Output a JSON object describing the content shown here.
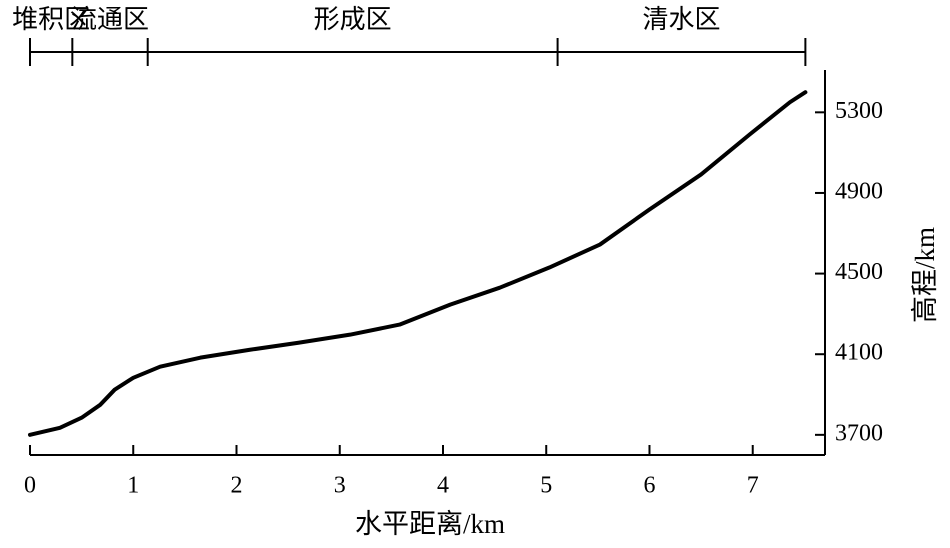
{
  "chart_data": {
    "type": "line",
    "x_label": "水平距离/km",
    "y_label": "高程/km",
    "x": [
      0,
      0.29,
      0.5,
      0.68,
      0.82,
      1.0,
      1.26,
      1.65,
      2.13,
      2.6,
      3.1,
      3.58,
      4.07,
      4.55,
      5.03,
      5.52,
      6.0,
      6.5,
      6.97,
      7.36,
      7.51
    ],
    "values": [
      3700,
      3735,
      3785,
      3849,
      3924,
      3983,
      4038,
      4083,
      4122,
      4157,
      4197,
      4247,
      4346,
      4430,
      4530,
      4644,
      4818,
      4992,
      5190,
      5350,
      5400
    ],
    "color": "#000000",
    "xlim": [
      0,
      7.7
    ],
    "xticks": [
      0,
      1,
      2,
      3,
      4,
      5,
      6,
      7
    ],
    "ylim": [
      3600,
      5510
    ],
    "yticks": [
      3700,
      4100,
      4500,
      4900,
      5300
    ],
    "y_axis_side": "right",
    "zones": {
      "names": [
        "堆积区",
        "流通区",
        "形成区",
        "清水区"
      ],
      "bounds": [
        0,
        0.41,
        1.14,
        5.11,
        7.51
      ]
    }
  }
}
